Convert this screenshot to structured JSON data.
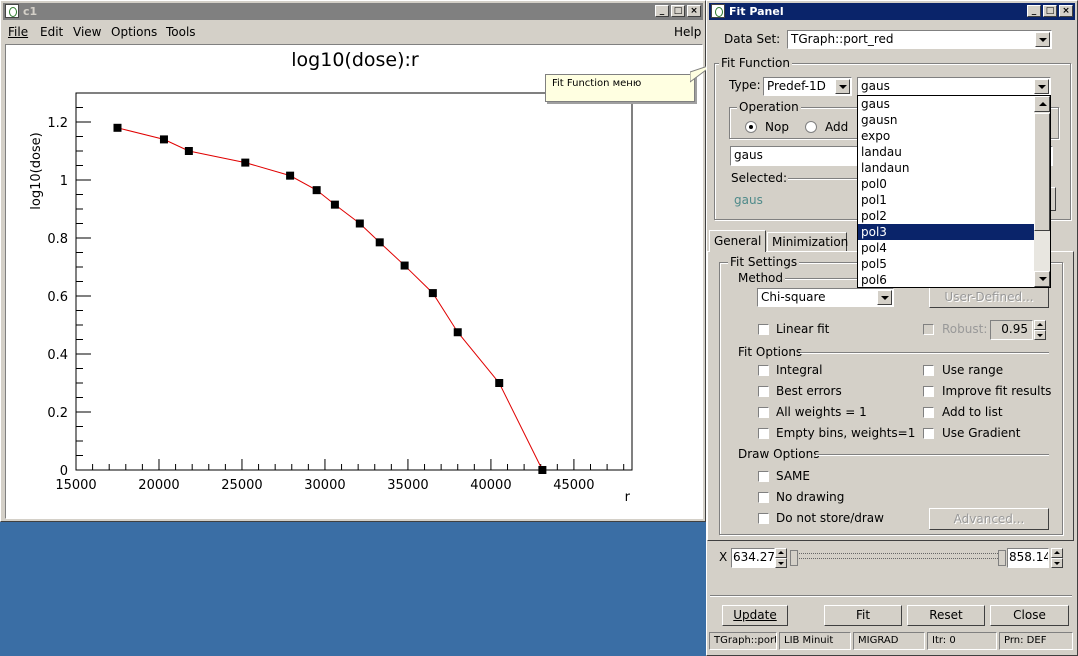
{
  "canvas_window": {
    "title": "c1",
    "menu": [
      "File",
      "Edit",
      "View",
      "Options",
      "Tools"
    ],
    "help": "Help",
    "tooltip": "Fit Function меню"
  },
  "chart_data": {
    "type": "line",
    "title": "log10(dose):r",
    "xlabel": "r",
    "ylabel": "log10(dose)",
    "xlim": [
      15000,
      48500
    ],
    "ylim": [
      0,
      1.3
    ],
    "x_ticks": [
      15000,
      20000,
      25000,
      30000,
      35000,
      40000,
      45000
    ],
    "x_tick_labels": [
      "15000",
      "20000",
      "25000",
      "30000",
      "35000",
      "40000",
      "45000"
    ],
    "y_ticks": [
      0,
      0.2,
      0.4,
      0.6,
      0.8,
      1,
      1.2
    ],
    "y_tick_labels": [
      "0",
      "0.2",
      "0.4",
      "0.6",
      "0.8",
      "1",
      "1.2"
    ],
    "marker": "square",
    "line_color": "#e00000",
    "marker_color": "#000000",
    "x": [
      17500,
      20300,
      21800,
      25200,
      27900,
      29500,
      30600,
      32100,
      33300,
      34800,
      36500,
      38000,
      40500,
      43100
    ],
    "y": [
      1.18,
      1.14,
      1.1,
      1.06,
      1.015,
      0.965,
      0.915,
      0.85,
      0.785,
      0.705,
      0.61,
      0.475,
      0.3,
      0.0
    ]
  },
  "fit_panel": {
    "title": "Fit Panel",
    "dataset_label": "Data Set:",
    "dataset_value": "TGraph::port_red",
    "fit_function_group": "Fit Function",
    "type_label": "Type:",
    "type_value": "Predef-1D",
    "function_value": "gaus",
    "function_options": [
      "gaus",
      "gausn",
      "expo",
      "landau",
      "landaun",
      "pol0",
      "pol1",
      "pol2",
      "pol3",
      "pol4",
      "pol5",
      "pol6"
    ],
    "selected_option": "pol3",
    "operation_group": "Operation",
    "op_nop": "Nop",
    "op_add": "Add",
    "formula_value": "gaus",
    "selected_label": "Selected:",
    "selected_value": "gaus",
    "tabs": [
      "General",
      "Minimization"
    ],
    "fit_settings_group": "Fit Settings",
    "method_label": "Method",
    "method_value": "Chi-square",
    "user_defined": "User-Defined...",
    "linear_fit": "Linear fit",
    "robust": "Robust:",
    "robust_value": "0.95",
    "fit_options_label": "Fit Options",
    "opt_integral": "Integral",
    "opt_use_range": "Use range",
    "opt_best_errors": "Best errors",
    "opt_improve": "Improve fit results",
    "opt_all_weights": "All weights = 1",
    "opt_add_list": "Add to list",
    "opt_empty_bins": "Empty bins, weights=1",
    "opt_gradient": "Use Gradient",
    "draw_options_label": "Draw Options",
    "draw_same": "SAME",
    "draw_no_drawing": "No drawing",
    "draw_no_store": "Do not store/draw",
    "advanced": "Advanced...",
    "x_label": "X",
    "x_min": "634.27",
    "x_max": "858.14",
    "btn_update": "Update",
    "btn_fit": "Fit",
    "btn_reset": "Reset",
    "btn_close": "Close",
    "status": [
      "TGraph::port_",
      "LIB Minuit",
      "MIGRAD",
      "Itr: 0",
      "Prn: DEF"
    ]
  }
}
